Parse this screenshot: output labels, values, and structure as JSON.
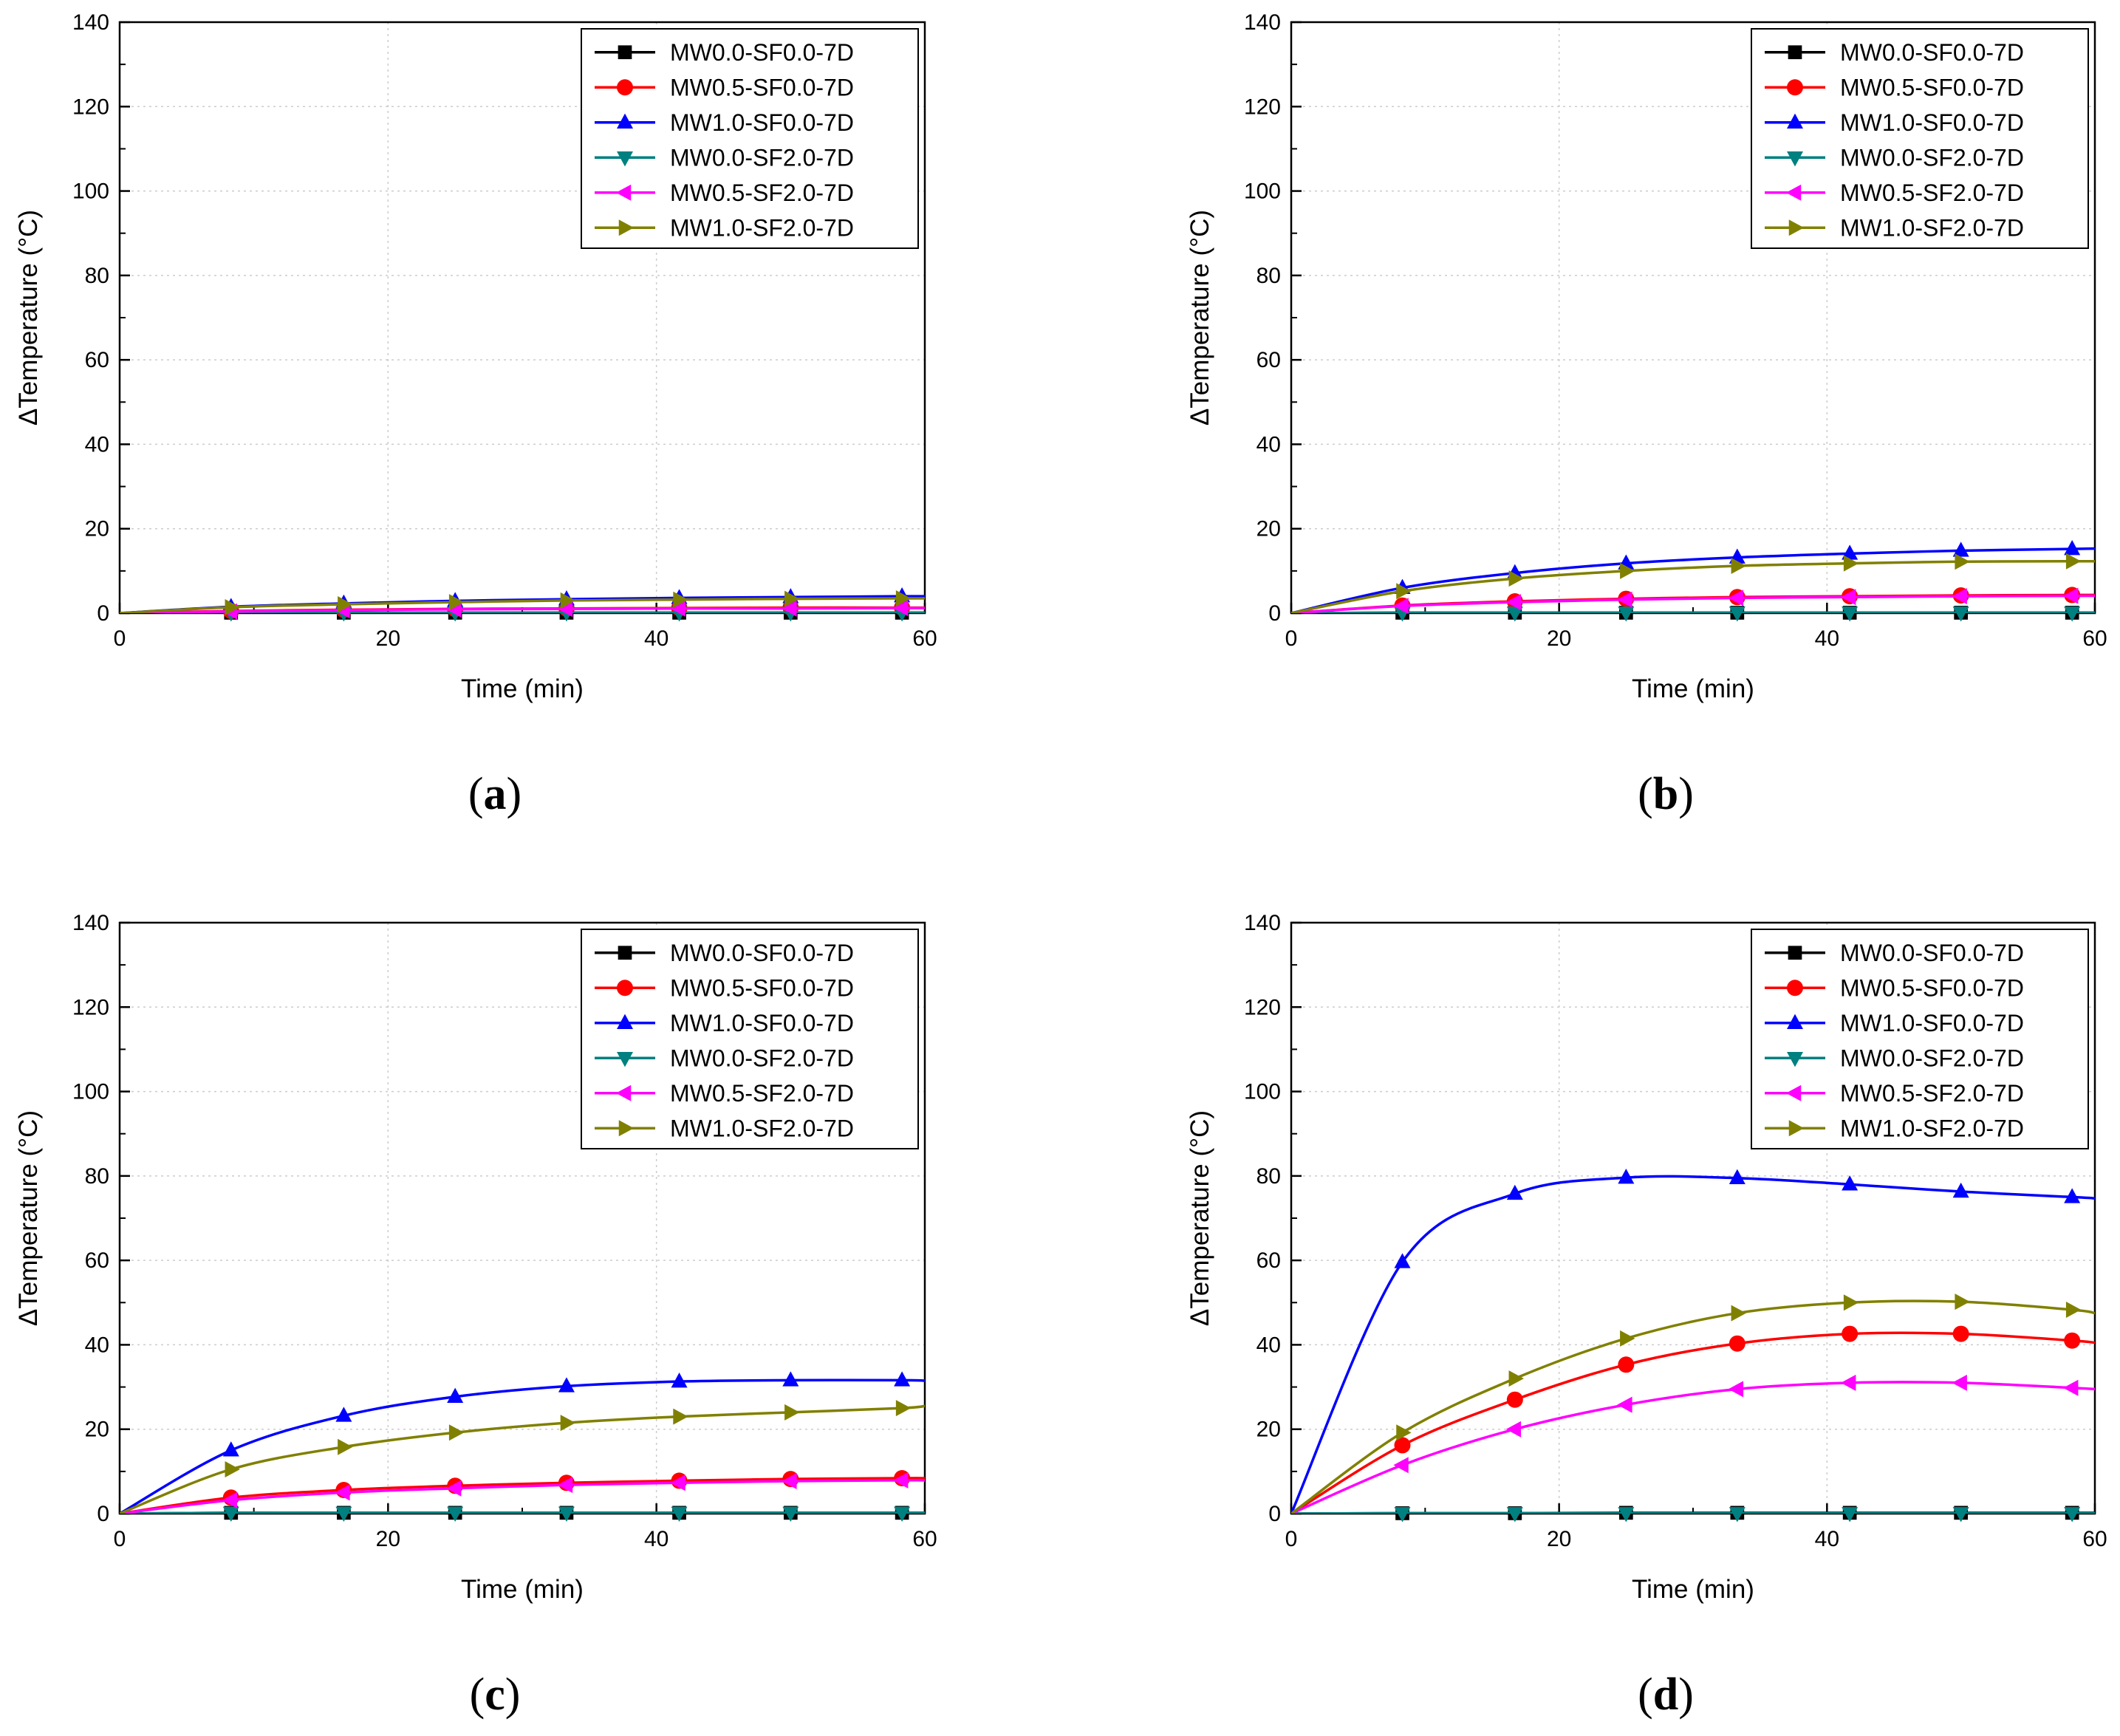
{
  "figure": {
    "colors": {
      "MW0.0-SF0.0-7D": "#000000",
      "MW0.5-SF0.0-7D": "#ff0000",
      "MW1.0-SF0.0-7D": "#0000ff",
      "MW0.0-SF2.0-7D": "#008080",
      "MW0.5-SF2.0-7D": "#ff00ff",
      "MW1.0-SF2.0-7D": "#808000"
    },
    "markers": {
      "MW0.0-SF0.0-7D": "square",
      "MW0.5-SF0.0-7D": "circle",
      "MW1.0-SF0.0-7D": "triangle-up",
      "MW0.0-SF2.0-7D": "triangle-down",
      "MW0.5-SF2.0-7D": "triangle-left",
      "MW1.0-SF2.0-7D": "triangle-right"
    }
  },
  "chart_data": [
    {
      "type": "line",
      "panel": "a",
      "caption": {
        "open": "(",
        "letter": "a",
        "close": ")"
      },
      "xlabel": "Time (min)",
      "ylabel": "ΔTemperature (°C)",
      "xlim": [
        0,
        60
      ],
      "ylim": [
        0,
        140
      ],
      "xticks": [
        "0",
        "20",
        "40",
        "60"
      ],
      "yticks": [
        "0",
        "20",
        "40",
        "60",
        "80",
        "100",
        "120",
        "140"
      ],
      "legend_position": "top-right",
      "grid": true,
      "x": [
        0,
        8.3,
        16.7,
        25,
        33.3,
        41.7,
        50,
        58.3,
        60
      ],
      "series": [
        {
          "name": "MW0.0-SF0.0-7D",
          "values": [
            0,
            0.1,
            0.1,
            0.1,
            0.1,
            0.1,
            0.1,
            0.1,
            0.1
          ]
        },
        {
          "name": "MW0.5-SF0.0-7D",
          "values": [
            0,
            0.5,
            0.8,
            1.0,
            1.1,
            1.2,
            1.3,
            1.3,
            1.3
          ]
        },
        {
          "name": "MW1.0-SF0.0-7D",
          "values": [
            0,
            1.5,
            2.3,
            2.9,
            3.3,
            3.6,
            3.8,
            4.0,
            4.0
          ]
        },
        {
          "name": "MW0.0-SF2.0-7D",
          "values": [
            0,
            0.1,
            0.1,
            0.1,
            0.1,
            0.1,
            0.1,
            0.1,
            0.1
          ]
        },
        {
          "name": "MW0.5-SF2.0-7D",
          "values": [
            0,
            0.4,
            0.7,
            0.9,
            1.0,
            1.1,
            1.1,
            1.2,
            1.2
          ]
        },
        {
          "name": "MW1.0-SF2.0-7D",
          "values": [
            0,
            1.4,
            2.1,
            2.6,
            3.0,
            3.2,
            3.4,
            3.5,
            3.5
          ]
        }
      ]
    },
    {
      "type": "line",
      "panel": "b",
      "caption": {
        "open": "(",
        "letter": "b",
        "close": ")"
      },
      "xlabel": "Time (min)",
      "ylabel": "ΔTemperature (°C)",
      "xlim": [
        0,
        60
      ],
      "ylim": [
        0,
        140
      ],
      "xticks": [
        "0",
        "20",
        "40",
        "60"
      ],
      "yticks": [
        "0",
        "20",
        "40",
        "60",
        "80",
        "100",
        "120",
        "140"
      ],
      "legend_position": "top-right",
      "grid": true,
      "x": [
        0,
        8.3,
        16.7,
        25,
        33.3,
        41.7,
        50,
        58.3,
        60
      ],
      "series": [
        {
          "name": "MW0.0-SF0.0-7D",
          "values": [
            0,
            0.1,
            0.1,
            0.1,
            0.1,
            0.1,
            0.1,
            0.1,
            0.1
          ]
        },
        {
          "name": "MW0.5-SF0.0-7D",
          "values": [
            0,
            1.8,
            2.8,
            3.4,
            3.8,
            4.0,
            4.2,
            4.3,
            4.3
          ]
        },
        {
          "name": "MW1.0-SF0.0-7D",
          "values": [
            0,
            6.0,
            9.5,
            11.8,
            13.2,
            14.1,
            14.8,
            15.2,
            15.3
          ]
        },
        {
          "name": "MW0.0-SF2.0-7D",
          "values": [
            0,
            0.1,
            0.1,
            0.1,
            0.1,
            0.1,
            0.1,
            0.1,
            0.1
          ]
        },
        {
          "name": "MW0.5-SF2.0-7D",
          "values": [
            0,
            1.7,
            2.6,
            3.2,
            3.6,
            3.8,
            4.0,
            4.1,
            4.1
          ]
        },
        {
          "name": "MW1.0-SF2.0-7D",
          "values": [
            0,
            5.2,
            8.2,
            10.0,
            11.2,
            11.8,
            12.2,
            12.3,
            12.3
          ]
        }
      ]
    },
    {
      "type": "line",
      "panel": "c",
      "caption": {
        "open": "(",
        "letter": "c",
        "close": ")"
      },
      "xlabel": "Time (min)",
      "ylabel": "ΔTemperature (°C)",
      "xlim": [
        0,
        60
      ],
      "ylim": [
        0,
        140
      ],
      "xticks": [
        "0",
        "20",
        "40",
        "60"
      ],
      "yticks": [
        "0",
        "20",
        "40",
        "60",
        "80",
        "100",
        "120",
        "140"
      ],
      "legend_position": "top-right",
      "grid": true,
      "x": [
        0,
        8.3,
        16.7,
        25,
        33.3,
        41.7,
        50,
        58.3,
        60
      ],
      "series": [
        {
          "name": "MW0.0-SF0.0-7D",
          "values": [
            0,
            0.2,
            0.2,
            0.2,
            0.2,
            0.2,
            0.2,
            0.2,
            0.2
          ]
        },
        {
          "name": "MW0.5-SF0.0-7D",
          "values": [
            0,
            3.8,
            5.6,
            6.6,
            7.3,
            7.8,
            8.2,
            8.4,
            8.4
          ]
        },
        {
          "name": "MW1.0-SF0.0-7D",
          "values": [
            0,
            15.0,
            23.2,
            27.7,
            30.2,
            31.3,
            31.6,
            31.6,
            31.5
          ]
        },
        {
          "name": "MW0.0-SF2.0-7D",
          "values": [
            0,
            0.2,
            0.2,
            0.2,
            0.2,
            0.2,
            0.2,
            0.2,
            0.2
          ]
        },
        {
          "name": "MW0.5-SF2.0-7D",
          "values": [
            0,
            3.2,
            5.0,
            6.0,
            6.8,
            7.3,
            7.7,
            7.9,
            7.9
          ]
        },
        {
          "name": "MW1.0-SF2.0-7D",
          "values": [
            0,
            10.5,
            15.8,
            19.2,
            21.5,
            23.0,
            24.0,
            25.0,
            25.5
          ]
        }
      ]
    },
    {
      "type": "line",
      "panel": "d",
      "caption": {
        "open": "(",
        "letter": "d",
        "close": ")"
      },
      "xlabel": "Time (min)",
      "ylabel": "ΔTemperature (°C)",
      "xlim": [
        0,
        60
      ],
      "ylim": [
        0,
        140
      ],
      "xticks": [
        "0",
        "20",
        "40",
        "60"
      ],
      "yticks": [
        "0",
        "20",
        "40",
        "60",
        "80",
        "100",
        "120",
        "140"
      ],
      "legend_position": "top-right",
      "grid": true,
      "x": [
        0,
        8.3,
        16.7,
        25,
        33.3,
        41.7,
        50,
        58.3,
        60
      ],
      "series": [
        {
          "name": "MW0.0-SF0.0-7D",
          "values": [
            0,
            0.1,
            0.1,
            0.2,
            0.2,
            0.2,
            0.2,
            0.2,
            0.2
          ]
        },
        {
          "name": "MW0.5-SF0.0-7D",
          "values": [
            0,
            16.2,
            27.0,
            35.3,
            40.3,
            42.6,
            42.6,
            41.0,
            40.5
          ]
        },
        {
          "name": "MW1.0-SF0.0-7D",
          "values": [
            0,
            59.6,
            75.8,
            79.6,
            79.5,
            78.0,
            76.3,
            75.0,
            74.7
          ]
        },
        {
          "name": "MW0.0-SF2.0-7D",
          "values": [
            0,
            0.1,
            0.1,
            0.1,
            0.1,
            0.1,
            0.1,
            0.1,
            0.1
          ]
        },
        {
          "name": "MW0.5-SF2.0-7D",
          "values": [
            0,
            11.5,
            20.0,
            25.8,
            29.5,
            31.0,
            31.0,
            29.8,
            29.5
          ]
        },
        {
          "name": "MW1.0-SF2.0-7D",
          "values": [
            0,
            19.2,
            32.0,
            41.5,
            47.5,
            50.0,
            50.2,
            48.3,
            47.5
          ]
        }
      ]
    }
  ]
}
